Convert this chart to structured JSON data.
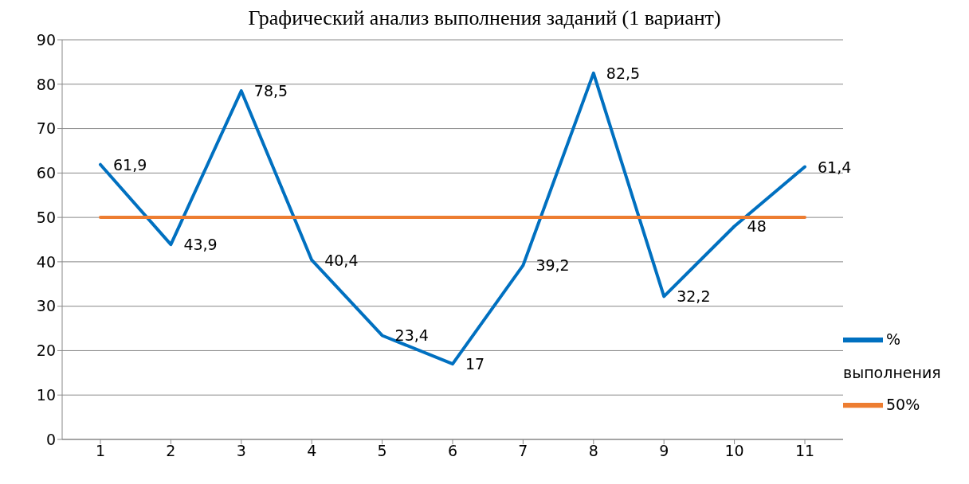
{
  "chart_data": {
    "type": "line",
    "title": "Графический анализ выполнения заданий (1 вариант)",
    "categories": [
      "1",
      "2",
      "3",
      "4",
      "5",
      "6",
      "7",
      "8",
      "9",
      "10",
      "11"
    ],
    "series": [
      {
        "name": "% выполнения",
        "color": "#0070c0",
        "values": [
          61.9,
          43.9,
          78.5,
          40.4,
          23.4,
          17,
          39.2,
          82.5,
          32.2,
          48,
          61.4
        ],
        "value_labels": [
          "61,9",
          "43,9",
          "78,5",
          "40,4",
          "23,4",
          "17",
          "39,2",
          "82,5",
          "32,2",
          "48",
          "61,4"
        ]
      },
      {
        "name": "50%",
        "color": "#ed7d31",
        "values": [
          50,
          50,
          50,
          50,
          50,
          50,
          50,
          50,
          50,
          50,
          50
        ]
      }
    ],
    "ylim": [
      0,
      90
    ],
    "yticks": [
      0,
      10,
      20,
      30,
      40,
      50,
      60,
      70,
      80,
      90
    ],
    "grid": "y",
    "legend": "right",
    "marker": "none",
    "line_style": "solid"
  }
}
